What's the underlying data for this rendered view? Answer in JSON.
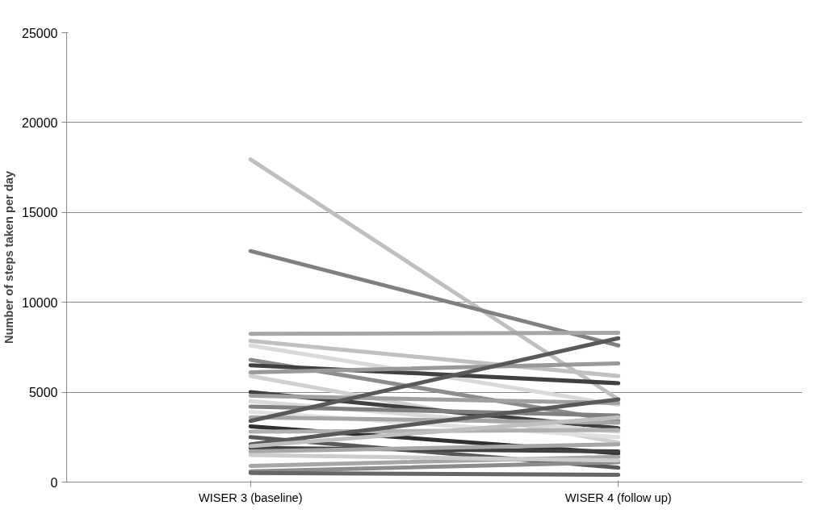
{
  "chart_data": {
    "type": "line",
    "categories": [
      "WISER 3 (baseline)",
      "WISER 4 (follow up)"
    ],
    "ylabel": "Number of steps taken per day",
    "ylim": [
      0,
      25000
    ],
    "yticks": [
      0,
      5000,
      10000,
      15000,
      20000,
      25000
    ],
    "grid": "y",
    "marker": "none",
    "line_style": "solid",
    "series": [
      {
        "color": "#bfbfbf",
        "values": [
          17950,
          4600
        ]
      },
      {
        "color": "#808080",
        "values": [
          12850,
          7600
        ]
      },
      {
        "color": "#a6a6a6",
        "values": [
          8250,
          8300
        ]
      },
      {
        "color": "#c0c0c0",
        "values": [
          7850,
          5900
        ]
      },
      {
        "color": "#d9d9d9",
        "values": [
          7600,
          4300
        ]
      },
      {
        "color": "#8c8c8c",
        "values": [
          6800,
          3400
        ]
      },
      {
        "color": "#404040",
        "values": [
          6500,
          5500
        ]
      },
      {
        "color": "#999999",
        "values": [
          6100,
          6600
        ]
      },
      {
        "color": "#d0d0d0",
        "values": [
          5900,
          2200
        ]
      },
      {
        "color": "#404040",
        "values": [
          5000,
          3000
        ]
      },
      {
        "color": "#a0a0a0",
        "values": [
          4800,
          4400
        ]
      },
      {
        "color": "#d9d9d9",
        "values": [
          4500,
          2800
        ]
      },
      {
        "color": "#808080",
        "values": [
          4200,
          3700
        ]
      },
      {
        "color": "#e0e0e0",
        "values": [
          3900,
          2500
        ]
      },
      {
        "color": "#a6a6a6",
        "values": [
          3600,
          3300
        ]
      },
      {
        "color": "#303030",
        "values": [
          3100,
          1600
        ]
      },
      {
        "color": "#b0b0b0",
        "values": [
          2800,
          2900
        ]
      },
      {
        "color": "#595959",
        "values": [
          2500,
          800
        ]
      },
      {
        "color": "#595959",
        "values": [
          2100,
          4600
        ]
      },
      {
        "color": "#404040",
        "values": [
          1900,
          1700
        ]
      },
      {
        "color": "#a6a6a6",
        "values": [
          1700,
          2100
        ]
      },
      {
        "color": "#a6a6a6",
        "values": [
          900,
          1400
        ]
      },
      {
        "color": "#8c8c8c",
        "values": [
          600,
          1100
        ]
      },
      {
        "color": "#666666",
        "values": [
          500,
          400
        ]
      },
      {
        "color": "#595959",
        "values": [
          3400,
          8000
        ]
      },
      {
        "color": "#bfbfbf",
        "values": [
          2000,
          3600
        ]
      },
      {
        "color": "#cccccc",
        "values": [
          1500,
          1200
        ]
      }
    ]
  }
}
